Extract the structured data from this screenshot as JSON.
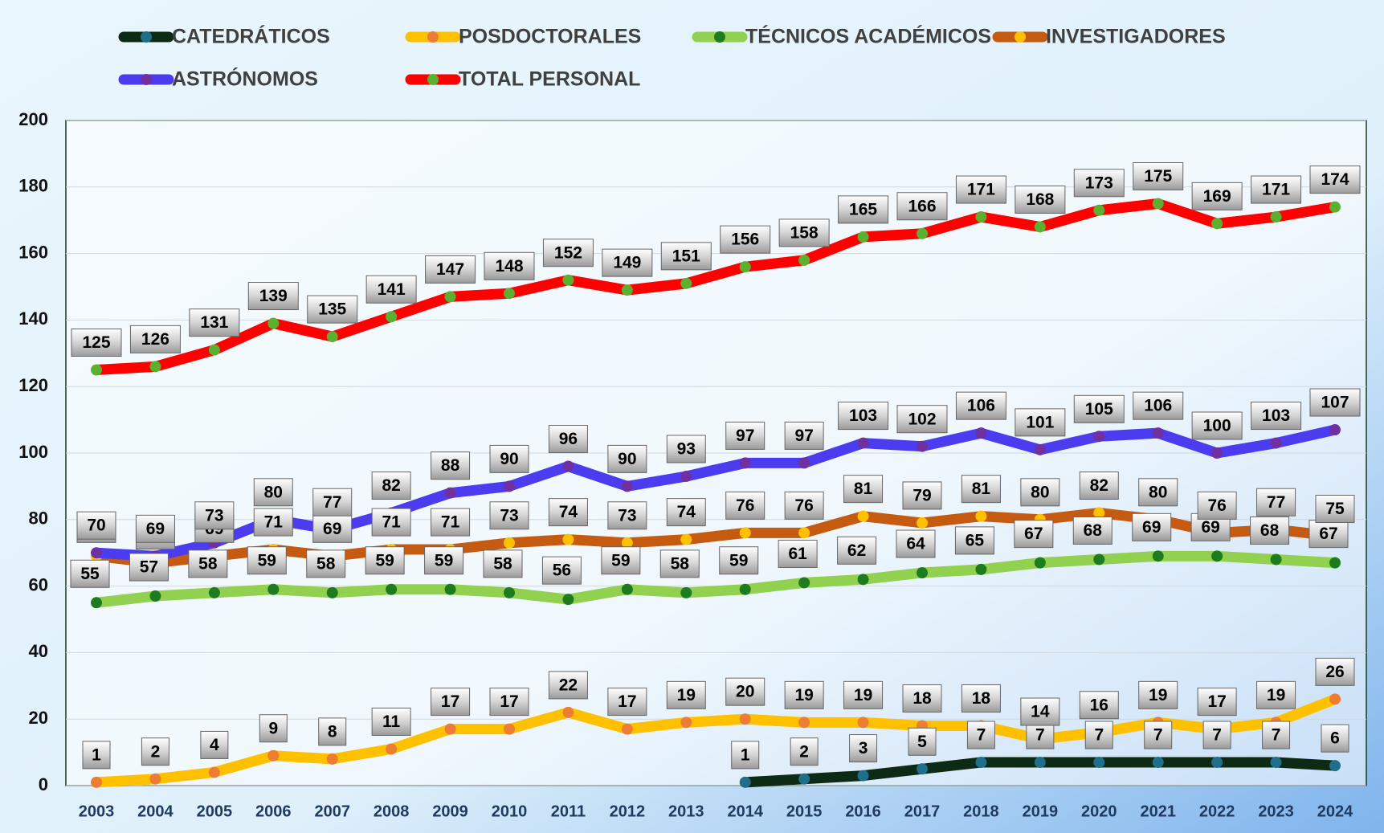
{
  "chart_data": {
    "type": "line",
    "categories": [
      "2003",
      "2004",
      "2005",
      "2006",
      "2007",
      "2008",
      "2009",
      "2010",
      "2011",
      "2012",
      "2013",
      "2014",
      "2015",
      "2016",
      "2017",
      "2018",
      "2019",
      "2020",
      "2021",
      "2022",
      "2023",
      "2024"
    ],
    "series": [
      {
        "name": "CATEDRÁTICOS",
        "color": "#0d2a14",
        "marker": "#1f6f8b",
        "values": [
          null,
          null,
          null,
          null,
          null,
          null,
          null,
          null,
          null,
          null,
          null,
          1,
          2,
          3,
          5,
          7,
          7,
          7,
          7,
          7,
          7,
          6
        ]
      },
      {
        "name": "POSDOCTORALES",
        "color": "#ffc000",
        "marker": "#ed7d31",
        "values": [
          1,
          2,
          4,
          9,
          8,
          11,
          17,
          17,
          22,
          17,
          19,
          20,
          19,
          19,
          18,
          18,
          14,
          16,
          19,
          17,
          19,
          26
        ]
      },
      {
        "name": "TÉCNICOS ACADÉMICOS",
        "color": "#92d050",
        "marker": "#1e7b1e",
        "values": [
          55,
          57,
          58,
          59,
          58,
          59,
          59,
          58,
          56,
          59,
          58,
          59,
          61,
          62,
          64,
          65,
          67,
          68,
          69,
          69,
          68,
          67
        ]
      },
      {
        "name": "INVESTIGADORES",
        "color": "#c55a11",
        "marker": "#ffc000",
        "values": [
          69,
          67,
          69,
          71,
          69,
          71,
          71,
          73,
          74,
          73,
          74,
          76,
          76,
          81,
          79,
          81,
          80,
          82,
          80,
          76,
          77,
          75
        ]
      },
      {
        "name": "ASTRÓNOMOS",
        "color": "#4b3cf0",
        "marker": "#7030a0",
        "values": [
          70,
          69,
          73,
          80,
          77,
          82,
          88,
          90,
          96,
          90,
          93,
          97,
          97,
          103,
          102,
          106,
          101,
          105,
          106,
          100,
          103,
          107
        ]
      },
      {
        "name": "TOTAL PERSONAL",
        "color": "#ff0000",
        "marker": "#5cb030",
        "values": [
          125,
          126,
          131,
          139,
          135,
          141,
          147,
          148,
          152,
          149,
          151,
          156,
          158,
          165,
          166,
          171,
          168,
          173,
          175,
          169,
          171,
          174
        ]
      }
    ],
    "ylim": [
      0,
      200
    ],
    "yticks": [
      0,
      20,
      40,
      60,
      80,
      100,
      120,
      140,
      160,
      180,
      200
    ],
    "grid": true
  }
}
